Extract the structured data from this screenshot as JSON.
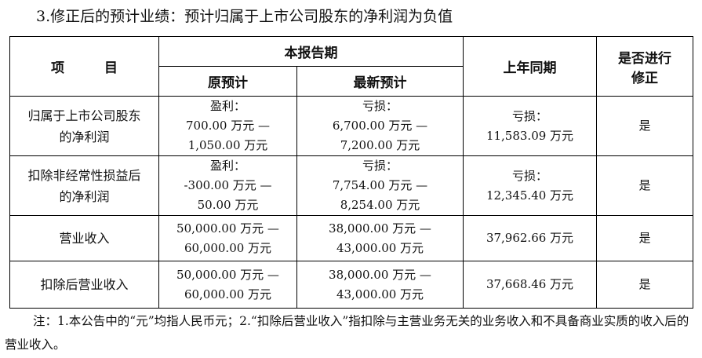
{
  "heading": "3.修正后的预计业绩：预计归属于上市公司股东的净利润为负值",
  "table": {
    "headers": {
      "item": "项　　　目",
      "current_period": "本报告期",
      "original_forecast": "原预计",
      "latest_forecast": "最新预计",
      "same_period_last_year": "上年同期",
      "revised": [
        "是否进行",
        "修正"
      ]
    },
    "rows": [
      {
        "label": [
          "归属于上市公司股东",
          "的净利润"
        ],
        "original": [
          "盈利：",
          "700.00 万元 —",
          "1,050.00 万元"
        ],
        "latest": [
          "亏损：",
          "6,700.00 万元 —",
          "7,200.00 万元"
        ],
        "last_year": [
          "亏损：",
          "11,583.09 万元"
        ],
        "revised": "是"
      },
      {
        "label": [
          "扣除非经常性损益后",
          "的净利润"
        ],
        "original": [
          "盈利：",
          "-300.00 万元 —",
          "50.00 万元"
        ],
        "latest": [
          "亏损：",
          "7,754.00 万元 —",
          "8,254.00 万元"
        ],
        "last_year": [
          "亏损：",
          "12,345.40 万元"
        ],
        "revised": "是"
      },
      {
        "label": [
          "营业收入"
        ],
        "original": [
          "50,000.00 万元 —",
          "60,000.00 万元"
        ],
        "latest": [
          "38,000.00 万元 —",
          "43,000.00 万元"
        ],
        "last_year": [
          "37,962.66 万元"
        ],
        "revised": "是"
      },
      {
        "label": [
          "扣除后营业收入"
        ],
        "original": [
          "50,000.00 万元 —",
          "60,000.00 万元"
        ],
        "latest": [
          "38,000.00 万元 —",
          "43,000.00 万元"
        ],
        "last_year": [
          "37,668.46 万元"
        ],
        "revised": "是"
      }
    ]
  },
  "note": "注：1.本公告中的“元”均指人民币元；2.“扣除后营业收入”指扣除与主营业务无关的业务收入和不具备商业实质的收入后的营业收入。"
}
